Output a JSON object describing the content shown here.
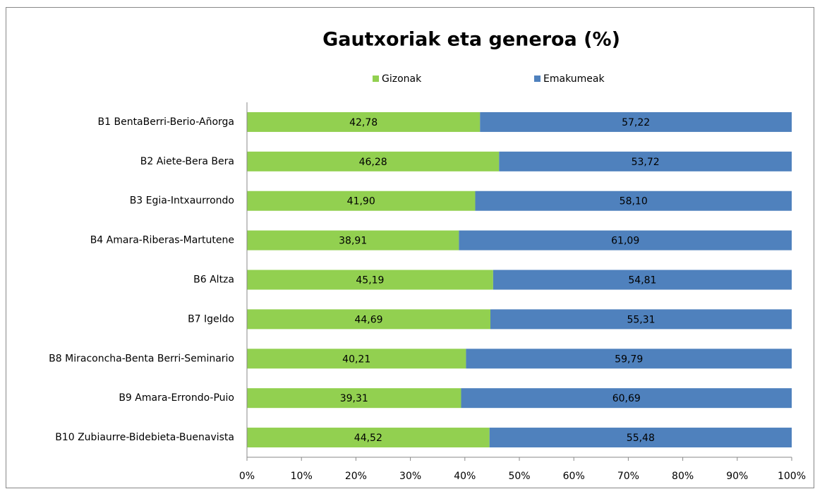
{
  "chart_data": {
    "type": "stacked-bar-horizontal",
    "title": "Gautxoriak eta generoa (%)",
    "categories": [
      "B1 BentaBerri-Berio-Añorga",
      "B2 Aiete-Bera Bera",
      "B3 Egia-Intxaurrondo",
      "B4 Amara-Riberas-Martutene",
      "B6 Altza",
      "B7 Igeldo",
      "B8 Miraconcha-Benta Berri-Seminario",
      "B9 Amara-Errondo-Puio",
      "B10 Zubiaurre-Bidebieta-Buenavista"
    ],
    "series": [
      {
        "name": "Gizonak",
        "color": "#92d050",
        "values": [
          42.78,
          46.28,
          41.9,
          38.91,
          45.19,
          44.69,
          40.21,
          39.31,
          44.52
        ],
        "value_labels": [
          "42,78",
          "46,28",
          "41,90",
          "38,91",
          "45,19",
          "44,69",
          "40,21",
          "39,31",
          "44,52"
        ]
      },
      {
        "name": "Emakumeak",
        "color": "#4f81bd",
        "values": [
          57.22,
          53.72,
          58.1,
          61.09,
          54.81,
          55.31,
          59.79,
          60.69,
          55.48
        ],
        "value_labels": [
          "57,22",
          "53,72",
          "58,10",
          "61,09",
          "54,81",
          "55,31",
          "59,79",
          "60,69",
          "55,48"
        ]
      }
    ],
    "xlim": [
      0,
      100
    ],
    "xticks": [
      {
        "value": 0,
        "label": "0%"
      },
      {
        "value": 10,
        "label": "10%"
      },
      {
        "value": 20,
        "label": "20%"
      },
      {
        "value": 30,
        "label": "30%"
      },
      {
        "value": 40,
        "label": "40%"
      },
      {
        "value": 50,
        "label": "50%"
      },
      {
        "value": 60,
        "label": "60%"
      },
      {
        "value": 70,
        "label": "70%"
      },
      {
        "value": 80,
        "label": "80%"
      },
      {
        "value": 90,
        "label": "90%"
      },
      {
        "value": 100,
        "label": "100%"
      }
    ],
    "grid": false,
    "legend": "top"
  }
}
